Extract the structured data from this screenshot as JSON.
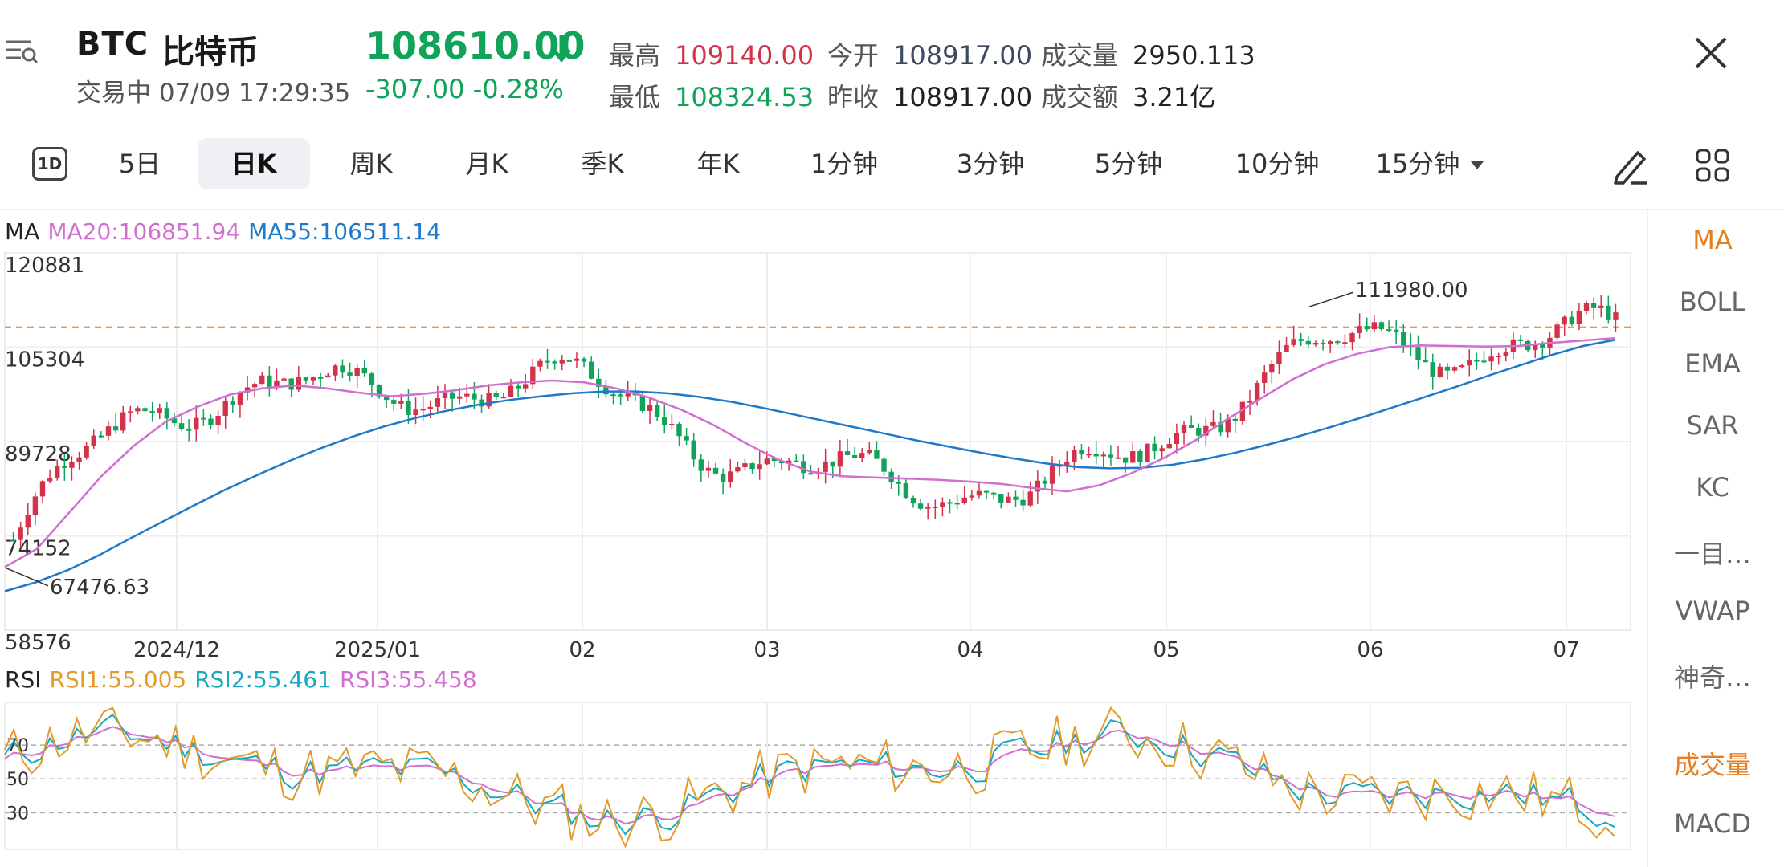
{
  "header": {
    "symbol": "BTC",
    "name": "比特币",
    "status": "交易中 07/09 17:29:35",
    "price": "108610.00",
    "change": "-307.00 -0.28%",
    "stats": {
      "high_label": "最高",
      "high_value": "109140.00",
      "low_label": "最低",
      "low_value": "108324.53",
      "open_label": "今开",
      "open_value": "108917.00",
      "prev_close_label": "昨收",
      "prev_close_value": "108917.00",
      "volume_label": "成交量",
      "volume_value": "2950.113",
      "turnover_label": "成交额",
      "turnover_value": "3.21亿"
    },
    "colors": {
      "up": "#d2334a",
      "down": "#10a35a"
    }
  },
  "tabs": {
    "first_badge": "1D",
    "items": [
      "5日",
      "日K",
      "周K",
      "月K",
      "季K",
      "年K",
      "1分钟",
      "3分钟",
      "5分钟",
      "10分钟",
      "15分钟"
    ],
    "active": "日K"
  },
  "ma_legend": {
    "title": "MA",
    "ma20": "MA20:106851.94",
    "ma55": "MA55:106511.14",
    "ma20_color": "#d16fd0",
    "ma55_color": "#1f78c8"
  },
  "rsi_legend": {
    "title": "RSI",
    "rsi1": "RSI1:55.005",
    "rsi2": "RSI2:55.461",
    "rsi3": "RSI3:55.458",
    "rsi1_color": "#e29a2a",
    "rsi2_color": "#17a9c2",
    "rsi3_color": "#d16fd0"
  },
  "side_panel": {
    "items": [
      "MA",
      "BOLL",
      "EMA",
      "SAR",
      "KC",
      "一目…",
      "VWAP",
      "神奇…",
      "成交量",
      "MACD"
    ],
    "active": "MA"
  },
  "chart_data": {
    "type": "candlestick",
    "y_ticks": [
      "120881",
      "105304",
      "89728",
      "74152",
      "58576"
    ],
    "ylim": [
      58576,
      120881
    ],
    "x_labels": [
      "2024/12",
      "2025/01",
      "02",
      "03",
      "04",
      "05",
      "06",
      "07"
    ],
    "max_annotation": "111980.00",
    "min_annotation": "67476.63",
    "reference_price": 108610,
    "ma20": [
      69000,
      72000,
      78000,
      84000,
      89000,
      93000,
      95500,
      97500,
      98500,
      99000,
      98500,
      97800,
      97200,
      97600,
      98200,
      99000,
      99500,
      99800,
      99500,
      98500,
      97000,
      95000,
      92500,
      89500,
      86800,
      84800,
      84000,
      83800,
      83600,
      83400,
      83100,
      82700,
      82000,
      81500,
      82500,
      84500,
      87000,
      90000,
      93500,
      96800,
      100000,
      102500,
      104200,
      105300,
      105600,
      105500,
      105400,
      105500,
      106000,
      106400,
      106800
    ],
    "ma55": [
      65000,
      66500,
      68500,
      71000,
      73800,
      76500,
      79200,
      81800,
      84200,
      86500,
      88600,
      90500,
      92200,
      93600,
      94800,
      95800,
      96600,
      97200,
      97700,
      98000,
      98000,
      97700,
      97100,
      96300,
      95300,
      94200,
      93100,
      92000,
      90900,
      89800,
      88800,
      87800,
      86900,
      86100,
      85500,
      85300,
      85400,
      85900,
      86800,
      87900,
      89200,
      90600,
      92100,
      93700,
      95400,
      97100,
      98800,
      100600,
      102300,
      104000,
      105500,
      106500
    ],
    "rsi_ticks": [
      "70",
      "50",
      "30"
    ]
  }
}
